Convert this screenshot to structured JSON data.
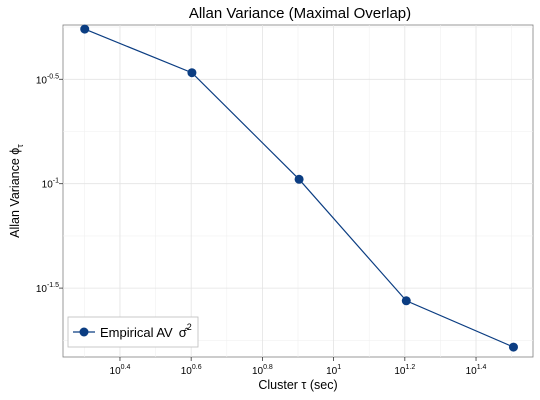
{
  "chart_data": {
    "type": "line",
    "title": "Allan Variance (Maximal Overlap)",
    "xlabel": "Cluster  τ (sec)",
    "ylabel": "Allan Variance  ϕ",
    "ylabel_subscript": "τ",
    "x_scale": "log10",
    "y_scale": "log10",
    "xlim_log10": [
      0.24,
      1.56
    ],
    "ylim_log10": [
      -1.83,
      -0.24
    ],
    "grid": true,
    "x_ticks": [
      {
        "base": "10",
        "exp": "0.4",
        "value_log10": 0.4
      },
      {
        "base": "10",
        "exp": "0.6",
        "value_log10": 0.6
      },
      {
        "base": "10",
        "exp": "0.8",
        "value_log10": 0.8
      },
      {
        "base": "10",
        "exp": "1",
        "value_log10": 1.0
      },
      {
        "base": "10",
        "exp": "1.2",
        "value_log10": 1.2
      },
      {
        "base": "10",
        "exp": "1.4",
        "value_log10": 1.4
      }
    ],
    "y_ticks": [
      {
        "base": "10",
        "exp": "-0.5",
        "value_log10": -0.5
      },
      {
        "base": "10",
        "exp": "-1",
        "value_log10": -1.0
      },
      {
        "base": "10",
        "exp": "-1.5",
        "value_log10": -1.5
      }
    ],
    "series": [
      {
        "name": "Empirical AV",
        "legend_label": "Empirical AV",
        "legend_symbol": "σ̂",
        "legend_symbol_exp": "2",
        "color": "#0b3d82",
        "x": [
          2,
          4,
          8,
          16,
          32
        ],
        "y": [
          0.55,
          0.34,
          0.105,
          0.0275,
          0.0165
        ]
      }
    ],
    "legend_position": "bottom-left"
  }
}
